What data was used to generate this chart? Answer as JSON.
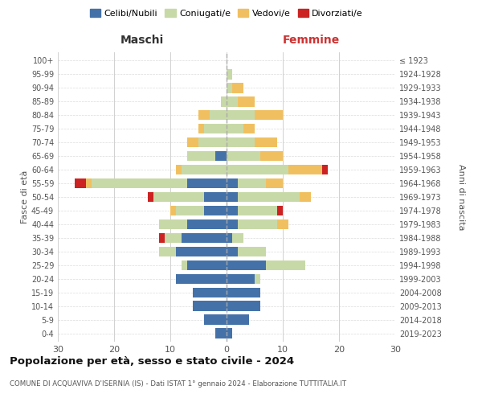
{
  "age_groups": [
    "0-4",
    "5-9",
    "10-14",
    "15-19",
    "20-24",
    "25-29",
    "30-34",
    "35-39",
    "40-44",
    "45-49",
    "50-54",
    "55-59",
    "60-64",
    "65-69",
    "70-74",
    "75-79",
    "80-84",
    "85-89",
    "90-94",
    "95-99",
    "100+"
  ],
  "birth_years": [
    "2019-2023",
    "2014-2018",
    "2009-2013",
    "2004-2008",
    "1999-2003",
    "1994-1998",
    "1989-1993",
    "1984-1988",
    "1979-1983",
    "1974-1978",
    "1969-1973",
    "1964-1968",
    "1959-1963",
    "1954-1958",
    "1949-1953",
    "1944-1948",
    "1939-1943",
    "1934-1938",
    "1929-1933",
    "1924-1928",
    "≤ 1923"
  ],
  "males": {
    "celibi": [
      2,
      4,
      6,
      6,
      9,
      7,
      9,
      8,
      7,
      4,
      4,
      7,
      0,
      2,
      0,
      0,
      0,
      0,
      0,
      0,
      0
    ],
    "coniugati": [
      0,
      0,
      0,
      0,
      0,
      1,
      3,
      3,
      5,
      5,
      9,
      17,
      8,
      5,
      5,
      4,
      3,
      1,
      0,
      0,
      0
    ],
    "vedovi": [
      0,
      0,
      0,
      0,
      0,
      0,
      0,
      0,
      0,
      1,
      0,
      1,
      1,
      0,
      2,
      1,
      2,
      0,
      0,
      0,
      0
    ],
    "divorziati": [
      0,
      0,
      0,
      0,
      0,
      0,
      0,
      1,
      0,
      0,
      1,
      2,
      0,
      0,
      0,
      0,
      0,
      0,
      0,
      0,
      0
    ]
  },
  "females": {
    "nubili": [
      1,
      4,
      6,
      6,
      5,
      7,
      2,
      1,
      2,
      2,
      2,
      2,
      0,
      0,
      0,
      0,
      0,
      0,
      0,
      0,
      0
    ],
    "coniugate": [
      0,
      0,
      0,
      0,
      1,
      7,
      5,
      2,
      7,
      7,
      11,
      5,
      11,
      6,
      5,
      3,
      5,
      2,
      1,
      1,
      0
    ],
    "vedove": [
      0,
      0,
      0,
      0,
      0,
      0,
      0,
      0,
      2,
      0,
      2,
      3,
      6,
      4,
      4,
      2,
      5,
      3,
      2,
      0,
      0
    ],
    "divorziate": [
      0,
      0,
      0,
      0,
      0,
      0,
      0,
      0,
      0,
      1,
      0,
      0,
      1,
      0,
      0,
      0,
      0,
      0,
      0,
      0,
      0
    ]
  },
  "colors": {
    "celibi": "#4472a8",
    "coniugati": "#c8d9a8",
    "vedovi": "#f0c060",
    "divorziati": "#cc2222"
  },
  "title": "Popolazione per età, sesso e stato civile - 2024",
  "subtitle": "COMUNE DI ACQUAVIVA D'ISERNIA (IS) - Dati ISTAT 1° gennaio 2024 - Elaborazione TUTTITALIA.IT",
  "xlabel_left": "Maschi",
  "xlabel_right": "Femmine",
  "ylabel_left": "Fasce di età",
  "ylabel_right": "Anni di nascita",
  "xlim": 30,
  "background_color": "#ffffff",
  "grid_color": "#cccccc"
}
